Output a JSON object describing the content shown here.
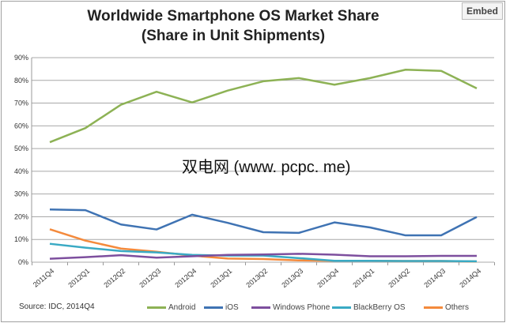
{
  "embed_label": "Embed",
  "watermark": "双电网 (www. pcpc. me)",
  "chart_data": {
    "type": "line",
    "title": "Worldwide Smartphone OS Market Share",
    "subtitle": "(Share in Unit Shipments)",
    "source": "Source: IDC, 2014Q4",
    "categories": [
      "2011Q4",
      "2012Q1",
      "2012Q2",
      "2012Q3",
      "2012Q4",
      "2013Q1",
      "2013Q2",
      "2013Q3",
      "2013Q4",
      "2014Q1",
      "2014Q2",
      "2014Q3",
      "2014Q4"
    ],
    "y_ticks": [
      "0%",
      "10%",
      "20%",
      "30%",
      "40%",
      "50%",
      "60%",
      "70%",
      "80%",
      "90%"
    ],
    "ylim": [
      0,
      90
    ],
    "grid": true,
    "legend_position": "bottom",
    "series": [
      {
        "name": "Android",
        "color": "#8db255",
        "values": [
          52.8,
          59.0,
          69.3,
          75.0,
          70.3,
          75.5,
          79.6,
          81.0,
          78.1,
          81.0,
          84.7,
          84.2,
          76.5
        ]
      },
      {
        "name": "iOS",
        "color": "#3f73b3",
        "values": [
          23.2,
          22.9,
          16.6,
          14.4,
          20.9,
          17.3,
          13.2,
          12.9,
          17.5,
          15.3,
          11.8,
          11.8,
          19.9
        ]
      },
      {
        "name": "Windows Phone",
        "color": "#7d4f9e",
        "values": [
          1.5,
          2.2,
          3.1,
          2.0,
          2.6,
          3.2,
          3.4,
          3.7,
          3.3,
          2.6,
          2.6,
          2.8,
          2.8
        ]
      },
      {
        "name": "BlackBerry OS",
        "color": "#3aaac4",
        "values": [
          8.1,
          6.4,
          4.9,
          4.3,
          3.2,
          2.9,
          2.9,
          1.8,
          0.6,
          0.6,
          0.5,
          0.5,
          0.4
        ]
      },
      {
        "name": "Others",
        "color": "#f48a3c",
        "values": [
          14.5,
          9.5,
          6.0,
          4.6,
          2.9,
          1.6,
          1.4,
          0.8,
          0.6,
          0.6,
          0.5,
          0.5,
          0.3
        ]
      }
    ]
  }
}
